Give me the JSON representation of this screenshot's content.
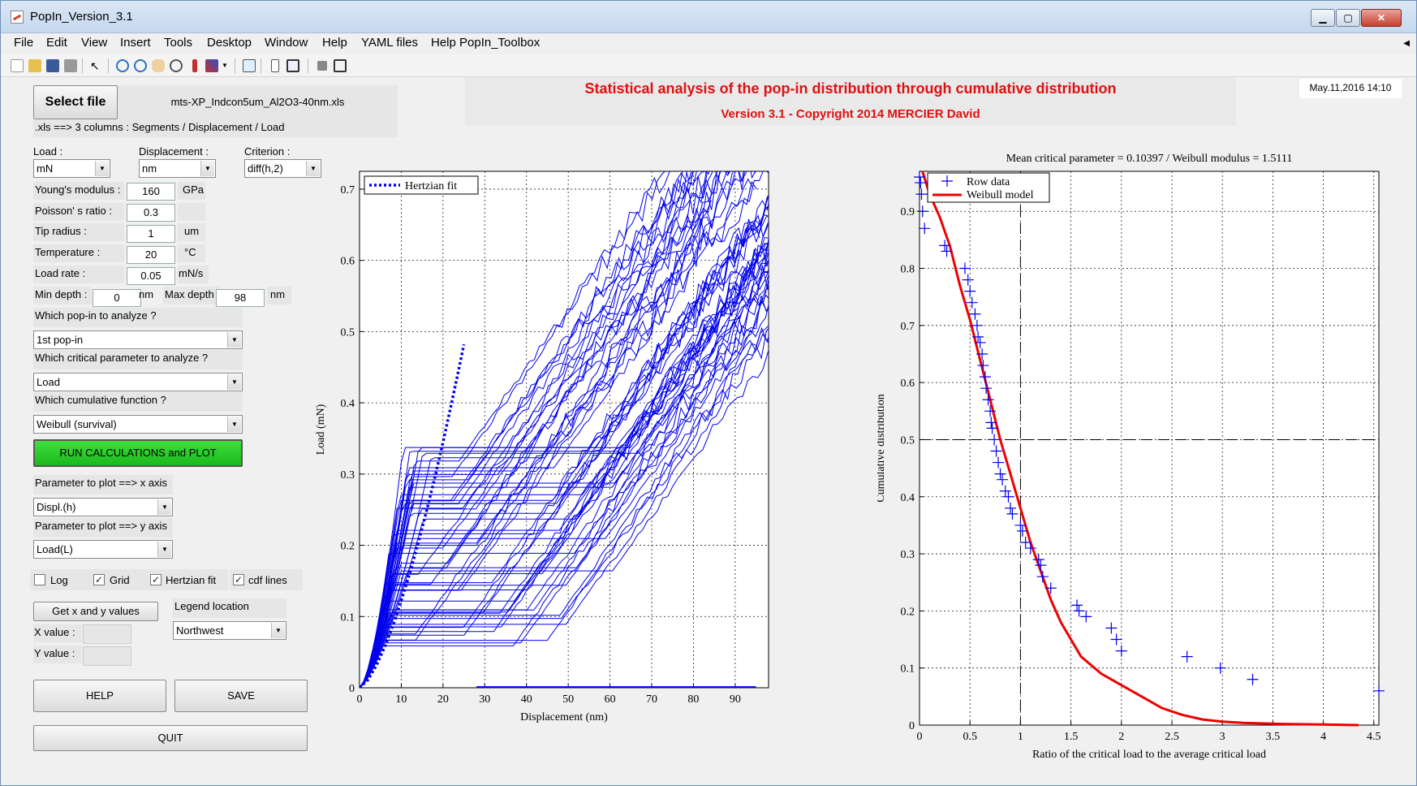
{
  "window": {
    "title": "PopIn_Version_3.1"
  },
  "menu": [
    "File",
    "Edit",
    "View",
    "Insert",
    "Tools",
    "Desktop",
    "Window",
    "Help",
    "YAML files",
    "Help PopIn_Toolbox"
  ],
  "file": {
    "select_label": "Select file",
    "filename": "mts-XP_Indcon5um_Al2O3-40nm.xls",
    "hint": ".xls ==> 3 columns : Segments / Displacement / Load"
  },
  "heading": {
    "title": "Statistical analysis of the pop-in distribution through cumulative distribution",
    "subtitle": "Version 3.1 - Copyright 2014 MERCIER David",
    "date": "May.11,2016 14:10"
  },
  "params": {
    "load_label": "Load :",
    "load_unit": "mN",
    "disp_label": "Displacement :",
    "disp_unit": "nm",
    "crit_label": "Criterion :",
    "crit_value": "diff(h,2)",
    "young_label": "Young's modulus :",
    "young_value": "160",
    "young_unit": "GPa",
    "poisson_label": "Poisson' s ratio :",
    "poisson_value": "0.3",
    "tip_label": "Tip radius :",
    "tip_value": "1",
    "tip_unit": "um",
    "temp_label": "Temperature :",
    "temp_value": "20",
    "temp_unit": "°C",
    "rate_label": "Load rate :",
    "rate_value": "0.05",
    "rate_unit": "mN/s",
    "mindepth_label": "Min depth :",
    "mindepth_value": "0",
    "mindepth_unit": "nm",
    "maxdepth_label": "Max depth :",
    "maxdepth_value": "98",
    "maxdepth_unit": "nm",
    "popin_label": "Which pop-in to analyze ?",
    "popin_value": "1st pop-in",
    "critparam_label": "Which critical parameter to analyze ?",
    "critparam_value": "Load",
    "cumul_label": "Which cumulative function ?",
    "cumul_value": "Weibull (survival)",
    "run_label": "RUN CALCULATIONS and PLOT",
    "xaxis_label": "Parameter to plot ==> x axis",
    "xaxis_value": "Displ.(h)",
    "yaxis_label": "Parameter to plot ==> y axis",
    "yaxis_value": "Load(L)",
    "log_label": "Log",
    "grid_label": "Grid",
    "hertz_label": "Hertzian fit",
    "cdf_label": "cdf lines",
    "getxy_label": "Get x and y values",
    "legend_label": "Legend location",
    "legend_value": "Northwest",
    "xval_label": "X value :",
    "yval_label": "Y value :",
    "help_label": "HELP",
    "save_label": "SAVE",
    "quit_label": "QUIT"
  },
  "chart_data": [
    {
      "type": "line",
      "xlabel": "Displacement (nm)",
      "ylabel": "Load (mN)",
      "xlim": [
        0,
        98
      ],
      "ylim": [
        0,
        0.725
      ],
      "xticks": [
        0,
        10,
        20,
        30,
        40,
        50,
        60,
        70,
        80,
        90
      ],
      "yticks": [
        0,
        0.1,
        0.2,
        0.3,
        0.4,
        0.5,
        0.6,
        0.7
      ],
      "grid": true,
      "legend_position": "top-left",
      "series": [
        {
          "name": "Hertzian fit",
          "style": "dotted",
          "x": [
            0,
            2,
            4,
            6,
            8,
            10,
            12,
            14,
            16,
            18,
            20,
            22,
            24,
            25
          ],
          "y": [
            0,
            0.011,
            0.031,
            0.057,
            0.087,
            0.122,
            0.16,
            0.202,
            0.247,
            0.294,
            0.345,
            0.398,
            0.453,
            0.482
          ]
        }
      ],
      "colors": {
        "curves": "#0000ee"
      }
    },
    {
      "type": "scatter",
      "title": "Mean critical parameter = 0.10397 / Weibull modulus = 1.5111",
      "xlabel": "Ratio of the critical load to the average critical load",
      "ylabel": "Cumulative distribution",
      "xlim": [
        0,
        4.55
      ],
      "ylim": [
        0,
        0.97
      ],
      "xticks": [
        0,
        0.5,
        1,
        1.5,
        2,
        2.5,
        3,
        3.5,
        4,
        4.5
      ],
      "yticks": [
        0,
        0.1,
        0.2,
        0.3,
        0.4,
        0.5,
        0.6,
        0.7,
        0.8,
        0.9
      ],
      "grid": true,
      "legend_position": "top-left",
      "series": [
        {
          "name": "Row data",
          "marker": "+",
          "x": [
            0.0,
            0.01,
            0.02,
            0.03,
            0.05,
            0.25,
            0.27,
            0.45,
            0.48,
            0.5,
            0.52,
            0.55,
            0.57,
            0.58,
            0.6,
            0.62,
            0.63,
            0.65,
            0.66,
            0.68,
            0.7,
            0.71,
            0.72,
            0.74,
            0.76,
            0.78,
            0.8,
            0.82,
            0.85,
            0.88,
            0.9,
            0.92,
            1.0,
            1.02,
            1.05,
            1.1,
            1.18,
            1.2,
            1.22,
            1.3,
            1.56,
            1.58,
            1.65,
            1.9,
            1.95,
            2.0,
            2.65,
            2.98,
            3.3,
            4.55
          ],
          "y": [
            0.96,
            0.95,
            0.93,
            0.9,
            0.87,
            0.84,
            0.83,
            0.8,
            0.78,
            0.76,
            0.74,
            0.72,
            0.7,
            0.68,
            0.67,
            0.65,
            0.63,
            0.61,
            0.59,
            0.57,
            0.55,
            0.53,
            0.52,
            0.5,
            0.48,
            0.46,
            0.44,
            0.43,
            0.41,
            0.4,
            0.38,
            0.37,
            0.35,
            0.34,
            0.32,
            0.31,
            0.29,
            0.28,
            0.26,
            0.24,
            0.21,
            0.2,
            0.19,
            0.17,
            0.15,
            0.13,
            0.12,
            0.1,
            0.08,
            0.06
          ]
        },
        {
          "name": "Weibull model",
          "style": "solid",
          "x": [
            0.03,
            0.1,
            0.2,
            0.3,
            0.4,
            0.5,
            0.6,
            0.7,
            0.8,
            0.9,
            1.0,
            1.1,
            1.2,
            1.3,
            1.4,
            1.5,
            1.6,
            1.8,
            2.0,
            2.2,
            2.4,
            2.6,
            2.8,
            3.0,
            3.2,
            3.6,
            4.0,
            4.35
          ],
          "y": [
            0.97,
            0.93,
            0.89,
            0.84,
            0.77,
            0.71,
            0.64,
            0.57,
            0.5,
            0.44,
            0.38,
            0.32,
            0.27,
            0.22,
            0.18,
            0.15,
            0.12,
            0.09,
            0.07,
            0.05,
            0.03,
            0.018,
            0.01,
            0.006,
            0.004,
            0.002,
            0.001,
            0.0
          ]
        }
      ],
      "colors": {
        "scatter": "#0000ee",
        "model": "#ee0000"
      }
    }
  ]
}
